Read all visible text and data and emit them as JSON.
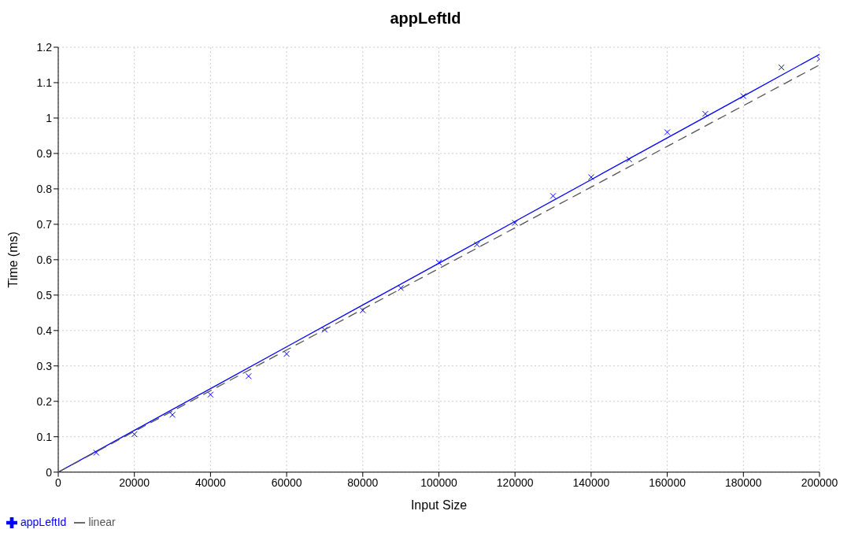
{
  "chart_data": {
    "type": "scatter",
    "title": "appLeftId",
    "xlabel": "Input Size",
    "ylabel": "Time (ms)",
    "x": [
      10000,
      20000,
      30000,
      40000,
      50000,
      60000,
      70000,
      80000,
      90000,
      100000,
      110000,
      120000,
      130000,
      140000,
      150000,
      160000,
      170000,
      180000,
      190000,
      200000
    ],
    "series": [
      {
        "name": "appLeftId",
        "color": "#0000ff",
        "marker": "cross",
        "values": [
          0.055,
          0.107,
          0.162,
          0.219,
          0.271,
          0.334,
          0.402,
          0.457,
          0.52,
          0.592,
          0.643,
          0.704,
          0.78,
          0.833,
          0.883,
          0.96,
          1.012,
          1.062,
          1.143,
          1.167
        ]
      },
      {
        "type": "line",
        "color": "#0000ff",
        "line_style": "solid",
        "marker": "none",
        "x": [
          0,
          20000,
          40000,
          60000,
          80000,
          100000,
          120000,
          140000,
          160000,
          180000,
          200000
        ],
        "values": [
          0,
          0.118,
          0.236,
          0.354,
          0.472,
          0.59,
          0.708,
          0.826,
          0.944,
          1.062,
          1.18
        ]
      },
      {
        "name": "linear",
        "type": "line",
        "color": "#555555",
        "line_style": "dashed",
        "marker": "none",
        "x": [
          0,
          20000,
          40000,
          60000,
          80000,
          100000,
          120000,
          140000,
          160000,
          180000,
          200000
        ],
        "values": [
          0,
          0.115,
          0.23,
          0.345,
          0.46,
          0.575,
          0.69,
          0.805,
          0.92,
          1.035,
          1.15
        ]
      }
    ],
    "xlim": [
      0,
      200000
    ],
    "xticks": [
      0,
      20000,
      40000,
      60000,
      80000,
      100000,
      120000,
      140000,
      160000,
      180000,
      200000
    ],
    "ylim": [
      0,
      1.2
    ],
    "yticks": [
      0,
      0.1,
      0.2,
      0.3,
      0.4,
      0.5,
      0.6,
      0.7,
      0.8,
      0.9,
      1,
      1.1,
      1.2
    ],
    "grid": true,
    "legend": "bottom left"
  }
}
